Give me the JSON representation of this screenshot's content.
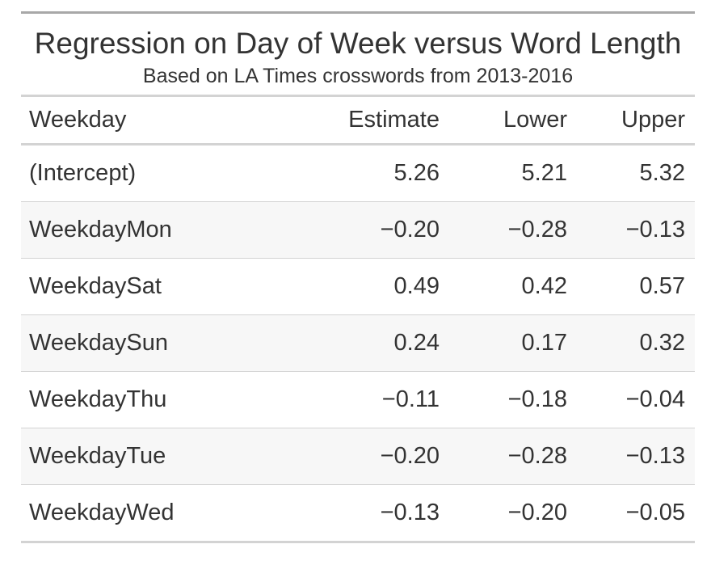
{
  "chart_data": {
    "type": "table",
    "title": "Regression on Day of Week versus Word Length",
    "subtitle": "Based on LA Times crosswords from 2013-2016",
    "columns": [
      "Weekday",
      "Estimate",
      "Lower",
      "Upper"
    ],
    "rows": [
      [
        "(Intercept)",
        "5.26",
        "5.21",
        "5.32"
      ],
      [
        "WeekdayMon",
        "−0.20",
        "−0.28",
        "−0.13"
      ],
      [
        "WeekdaySat",
        "0.49",
        "0.42",
        "0.57"
      ],
      [
        "WeekdaySun",
        "0.24",
        "0.17",
        "0.32"
      ],
      [
        "WeekdayThu",
        "−0.11",
        "−0.18",
        "−0.04"
      ],
      [
        "WeekdayTue",
        "−0.20",
        "−0.28",
        "−0.13"
      ],
      [
        "WeekdayWed",
        "−0.13",
        "−0.20",
        "−0.05"
      ]
    ],
    "striped_rows": true
  }
}
